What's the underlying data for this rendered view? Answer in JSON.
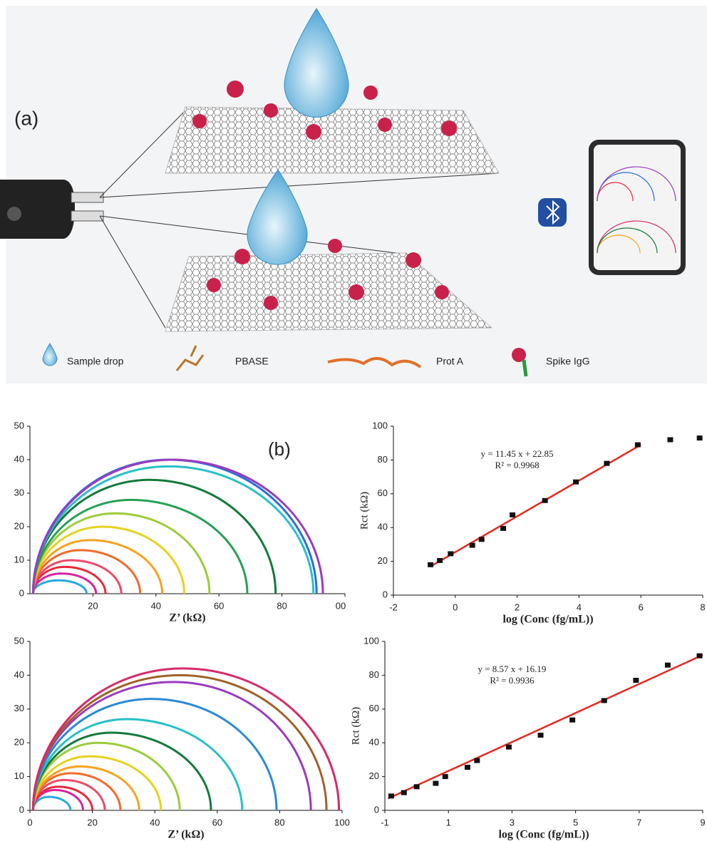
{
  "panel_a": {
    "label": "(a)",
    "legend": [
      "Sample drop",
      "PBASE",
      "Prot A",
      "Spike IgG"
    ]
  },
  "panel_b": {
    "label": "(b)"
  },
  "chart_data": [
    {
      "type": "line",
      "xlabel": "Z’ (kΩ)",
      "xlim": [
        0,
        100
      ],
      "ylim": [
        0,
        50
      ],
      "xticks": [
        20,
        40,
        60,
        80,
        {
          "value": 100,
          "label": "00"
        }
      ],
      "yticks": [
        0,
        10,
        20,
        30,
        40,
        50
      ],
      "series": [
        {
          "color": "#29a8e0",
          "x": [
            1,
            9,
            18
          ],
          "values": [
            0,
            4,
            0
          ]
        },
        {
          "color": "#d6249f",
          "x": [
            1,
            10,
            21
          ],
          "values": [
            0,
            6,
            0
          ]
        },
        {
          "color": "#e8283a",
          "x": [
            1,
            11,
            24
          ],
          "values": [
            0,
            8,
            0
          ]
        },
        {
          "color": "#f04a6a",
          "x": [
            1,
            13,
            29
          ],
          "values": [
            0,
            10,
            0
          ]
        },
        {
          "color": "#f26a2a",
          "x": [
            1,
            16,
            35
          ],
          "values": [
            0,
            13,
            0
          ]
        },
        {
          "color": "#f7a21c",
          "x": [
            1,
            19,
            42
          ],
          "values": [
            0,
            16,
            0
          ]
        },
        {
          "color": "#e6d21e",
          "x": [
            1,
            23,
            49
          ],
          "values": [
            0,
            20,
            0
          ]
        },
        {
          "color": "#9ccc3a",
          "x": [
            1,
            27,
            57
          ],
          "values": [
            0,
            24,
            0
          ]
        },
        {
          "color": "#27a055",
          "x": [
            1,
            32,
            69
          ],
          "values": [
            0,
            28,
            0
          ]
        },
        {
          "color": "#137a3c",
          "x": [
            1,
            38,
            78
          ],
          "values": [
            0,
            34,
            0
          ]
        },
        {
          "color": "#26c0c8",
          "x": [
            1,
            44,
            90
          ],
          "values": [
            0,
            38,
            0
          ]
        },
        {
          "color": "#2a6fd6",
          "x": [
            1,
            44,
            91
          ],
          "values": [
            0,
            40,
            0
          ]
        },
        {
          "color": "#9a3bbf",
          "x": [
            1,
            45,
            93
          ],
          "values": [
            0,
            40,
            0
          ]
        }
      ]
    },
    {
      "type": "scatter",
      "ylabel": "Rct (kΩ)",
      "xlabel": "log (Conc (fg/mL))",
      "color": "#111",
      "xlim": [
        -2,
        8
      ],
      "ylim": [
        0,
        100
      ],
      "xticks": [
        -2,
        0,
        2,
        4,
        6,
        8
      ],
      "yticks": [
        0,
        20,
        40,
        60,
        80,
        100
      ],
      "x": [
        -0.8,
        -0.5,
        -0.15,
        0.55,
        0.85,
        1.55,
        1.85,
        2.9,
        3.9,
        4.9,
        5.9,
        6.95,
        7.9
      ],
      "values": [
        18,
        20.5,
        24.5,
        29.5,
        33,
        39.5,
        47.5,
        56,
        67,
        78,
        89,
        92,
        93
      ],
      "fit": {
        "color": "#e8281e",
        "x": [
          -0.8,
          6
        ],
        "values": [
          17,
          89
        ]
      },
      "annotations": [
        "y = 11.45 x + 22.85",
        "R² = 0.9968"
      ]
    },
    {
      "type": "line",
      "xlabel": "Z’ (kΩ)",
      "xlim": [
        0,
        100
      ],
      "ylim": [
        0,
        50
      ],
      "xticks": [
        0,
        20,
        40,
        60,
        80,
        100
      ],
      "yticks": [
        0,
        10,
        20,
        30,
        40,
        50
      ],
      "series": [
        {
          "color": "#29a8e0",
          "x": [
            1,
            6,
            13
          ],
          "values": [
            0,
            4,
            0
          ]
        },
        {
          "color": "#d6249f",
          "x": [
            1,
            8,
            17
          ],
          "values": [
            0,
            6,
            0
          ]
        },
        {
          "color": "#e8283a",
          "x": [
            1,
            9,
            20
          ],
          "values": [
            0,
            7,
            0
          ]
        },
        {
          "color": "#f04a6a",
          "x": [
            1,
            11,
            24
          ],
          "values": [
            0,
            9,
            0
          ]
        },
        {
          "color": "#f26a2a",
          "x": [
            1,
            13,
            29
          ],
          "values": [
            0,
            11,
            0
          ]
        },
        {
          "color": "#f7a21c",
          "x": [
            1,
            16,
            35
          ],
          "values": [
            0,
            13,
            0
          ]
        },
        {
          "color": "#e6d21e",
          "x": [
            1,
            19,
            42
          ],
          "values": [
            0,
            16,
            0
          ]
        },
        {
          "color": "#9ccc3a",
          "x": [
            1,
            22,
            48
          ],
          "values": [
            0,
            20,
            0
          ]
        },
        {
          "color": "#137a3c",
          "x": [
            1,
            26,
            58
          ],
          "values": [
            0,
            23,
            0
          ]
        },
        {
          "color": "#26c0c8",
          "x": [
            1,
            31,
            68
          ],
          "values": [
            0,
            27,
            0
          ]
        },
        {
          "color": "#2a8ad6",
          "x": [
            1,
            39,
            79
          ],
          "values": [
            0,
            33,
            0
          ]
        },
        {
          "color": "#9a3bbf",
          "x": [
            1,
            46,
            90
          ],
          "values": [
            0,
            38,
            0
          ]
        },
        {
          "color": "#a0612a",
          "x": [
            1,
            48,
            95
          ],
          "values": [
            0,
            40,
            0
          ]
        },
        {
          "color": "#d62a6a",
          "x": [
            1,
            49,
            99
          ],
          "values": [
            0,
            42,
            0
          ]
        }
      ]
    },
    {
      "type": "scatter",
      "ylabel": "Rct (kΩ)",
      "xlabel": "log (Conc (fg/mL))",
      "color": "#111",
      "xlim": [
        -1,
        9
      ],
      "ylim": [
        0,
        100
      ],
      "xticks": [
        -1,
        1,
        3,
        5,
        7,
        9
      ],
      "yticks": [
        0,
        20,
        40,
        60,
        80,
        100
      ],
      "x": [
        -0.8,
        -0.4,
        0,
        0.6,
        0.9,
        1.6,
        1.9,
        2.9,
        3.9,
        4.9,
        5.9,
        6.9,
        7.9,
        8.9
      ],
      "values": [
        8.5,
        10.5,
        14,
        16,
        20,
        25.5,
        29.5,
        37.5,
        44.5,
        53.5,
        65,
        77,
        86,
        91.5
      ],
      "fit": {
        "color": "#e8281e",
        "x": [
          -0.9,
          9
        ],
        "values": [
          7,
          92
        ]
      },
      "annotations": [
        "y = 8.57 x + 16.19",
        "R² = 0.9936"
      ]
    }
  ]
}
